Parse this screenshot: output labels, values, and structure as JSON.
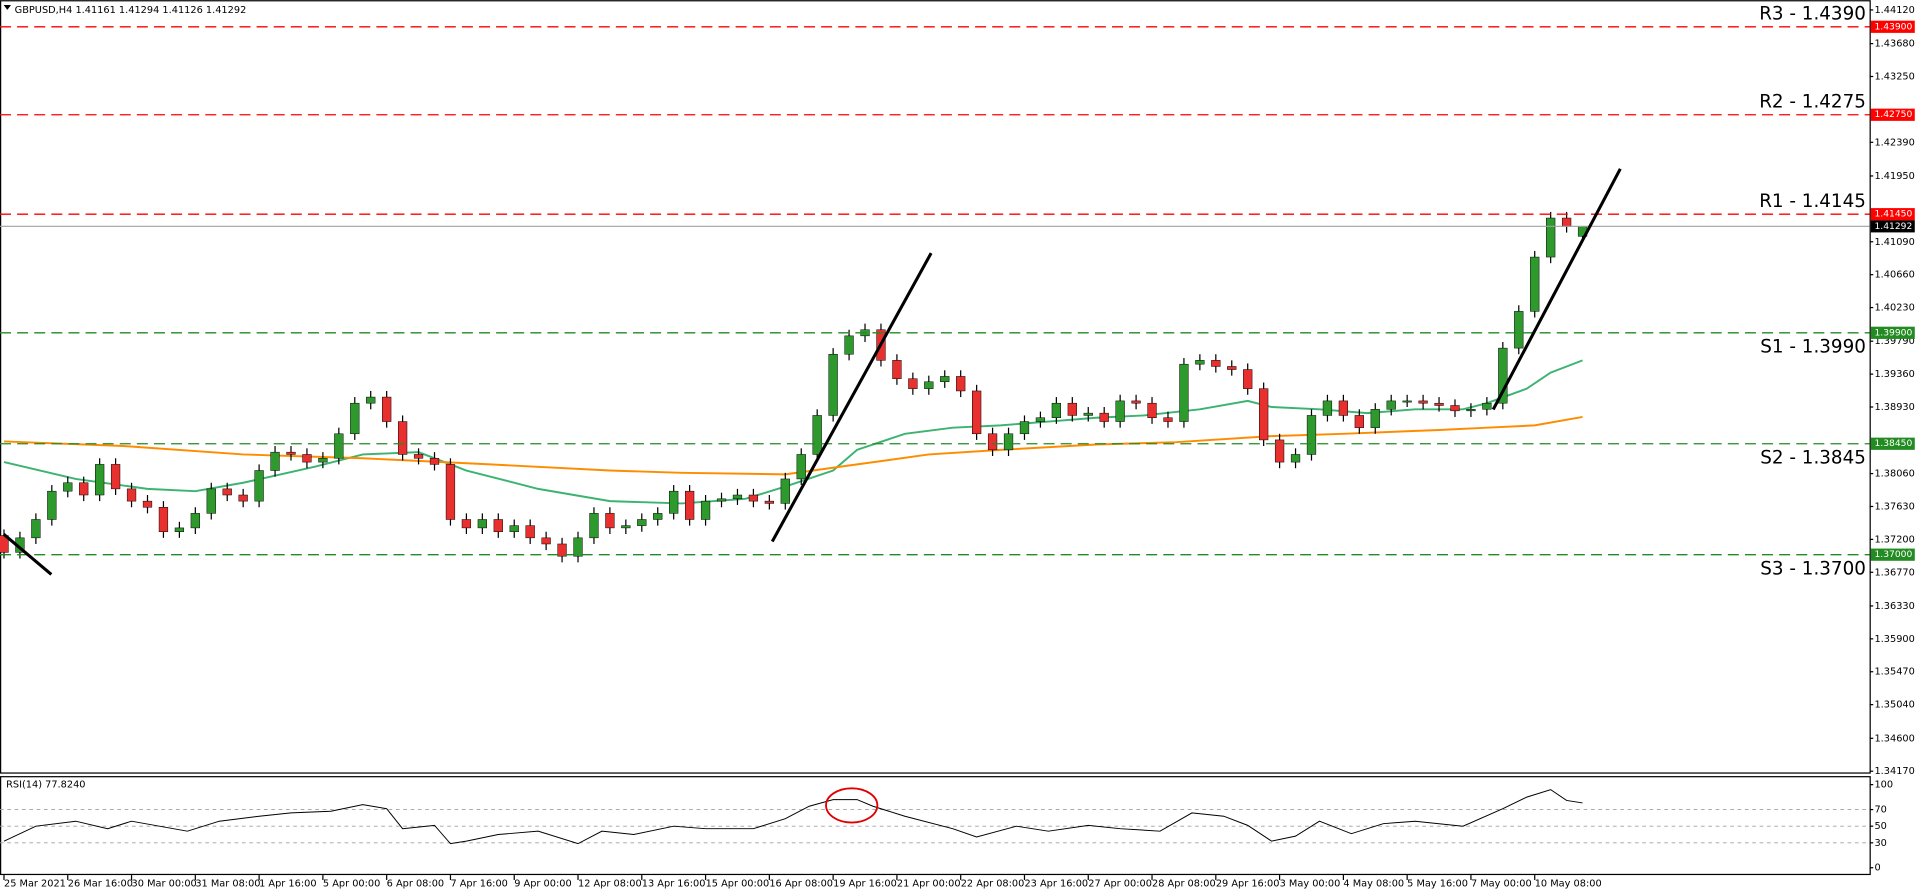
{
  "chart_data": [
    {
      "type": "candlestick",
      "title": "GBPUSD,H4  1.41161 1.41294 1.41126 1.41292",
      "x": [
        0,
        2,
        4,
        6,
        8,
        10,
        12,
        14,
        16,
        18,
        20,
        22,
        24,
        26,
        28,
        30,
        32,
        34,
        36,
        38,
        40,
        42,
        44,
        46,
        48,
        50,
        52,
        54,
        56,
        58,
        60,
        62,
        64,
        66,
        68,
        70,
        72,
        74,
        76,
        78,
        80,
        82,
        84,
        86,
        88,
        90,
        92,
        94,
        96,
        98,
        100,
        102,
        104,
        106,
        108,
        110,
        112,
        114,
        116,
        118,
        120,
        122,
        124,
        126,
        128,
        130,
        132,
        134,
        136,
        138,
        140,
        142,
        144,
        146,
        148,
        150,
        152,
        154,
        156,
        158,
        160,
        162,
        164,
        166,
        168,
        170,
        172,
        174,
        176,
        178,
        180,
        182,
        184,
        186,
        188,
        190,
        192,
        194,
        196,
        198
      ],
      "open": [
        1.3725,
        1.3703,
        1.3722,
        1.3746,
        1.3783,
        1.3794,
        1.3778,
        1.3818,
        1.3786,
        1.377,
        1.3762,
        1.373,
        1.3735,
        1.3754,
        1.3786,
        1.3778,
        1.377,
        1.381,
        1.3834,
        1.3831,
        1.3821,
        1.3826,
        1.3858,
        1.3898,
        1.3906,
        1.3874,
        1.3831,
        1.3826,
        1.3818,
        1.3746,
        1.3735,
        1.3746,
        1.373,
        1.3738,
        1.3722,
        1.3714,
        1.3698,
        1.3722,
        1.3754,
        1.3735,
        1.3738,
        1.3746,
        1.3754,
        1.3783,
        1.3746,
        1.377,
        1.3773,
        1.3778,
        1.377,
        1.3767,
        1.3799,
        1.3831,
        1.3882,
        1.3962,
        1.3986,
        1.3994,
        1.3954,
        1.393,
        1.3917,
        1.3926,
        1.3933,
        1.3914,
        1.3858,
        1.3837,
        1.3858,
        1.3874,
        1.3879,
        1.3898,
        1.3882,
        1.3885,
        1.3874,
        1.3901,
        1.3898,
        1.3879,
        1.3874,
        1.3949,
        1.3954,
        1.3946,
        1.3942,
        1.3917,
        1.385,
        1.3821,
        1.3831,
        1.3882,
        1.3901,
        1.3882,
        1.3866,
        1.389,
        1.3901,
        1.3901,
        1.3898,
        1.3895,
        1.3888,
        1.389,
        1.3898,
        1.397,
        1.4018,
        1.4089,
        1.414,
        1.41161
      ],
      "high": [
        1.3733,
        1.373,
        1.3754,
        1.3791,
        1.3802,
        1.3802,
        1.3826,
        1.3826,
        1.3794,
        1.3778,
        1.377,
        1.3743,
        1.3762,
        1.3794,
        1.3794,
        1.3786,
        1.3818,
        1.3842,
        1.3842,
        1.3839,
        1.3834,
        1.3866,
        1.3906,
        1.3914,
        1.3914,
        1.3882,
        1.3839,
        1.3834,
        1.3826,
        1.3754,
        1.3754,
        1.3754,
        1.3746,
        1.3746,
        1.373,
        1.3722,
        1.373,
        1.3762,
        1.3762,
        1.3746,
        1.3754,
        1.3762,
        1.3791,
        1.3791,
        1.3778,
        1.3781,
        1.3786,
        1.3786,
        1.3778,
        1.3807,
        1.3839,
        1.389,
        1.397,
        1.3994,
        1.4002,
        1.4002,
        1.3962,
        1.3938,
        1.3934,
        1.3941,
        1.3941,
        1.3922,
        1.3866,
        1.3866,
        1.3882,
        1.3887,
        1.3906,
        1.3906,
        1.3893,
        1.3893,
        1.3909,
        1.3909,
        1.3906,
        1.3887,
        1.3957,
        1.3962,
        1.3962,
        1.3954,
        1.395,
        1.3925,
        1.3858,
        1.3839,
        1.389,
        1.3909,
        1.3909,
        1.389,
        1.3898,
        1.3909,
        1.3909,
        1.3909,
        1.3906,
        1.3903,
        1.3898,
        1.3906,
        1.3978,
        1.4026,
        1.4097,
        1.4148,
        1.4148,
        1.41294
      ],
      "low": [
        1.3695,
        1.3695,
        1.3714,
        1.3738,
        1.3775,
        1.377,
        1.377,
        1.3778,
        1.3762,
        1.3754,
        1.3722,
        1.3722,
        1.3727,
        1.3746,
        1.377,
        1.3762,
        1.3762,
        1.3802,
        1.3823,
        1.3813,
        1.3813,
        1.3818,
        1.385,
        1.389,
        1.3866,
        1.3823,
        1.3818,
        1.381,
        1.3738,
        1.3727,
        1.3727,
        1.3722,
        1.3722,
        1.3714,
        1.3706,
        1.369,
        1.369,
        1.3714,
        1.3727,
        1.3727,
        1.373,
        1.3738,
        1.3746,
        1.3738,
        1.3738,
        1.3762,
        1.3765,
        1.3762,
        1.3759,
        1.3759,
        1.3791,
        1.3823,
        1.3874,
        1.3954,
        1.3978,
        1.3946,
        1.3922,
        1.3909,
        1.3909,
        1.3918,
        1.3906,
        1.385,
        1.3829,
        1.3829,
        1.385,
        1.3866,
        1.3871,
        1.3874,
        1.3874,
        1.3866,
        1.3866,
        1.389,
        1.3871,
        1.3866,
        1.3866,
        1.3941,
        1.3938,
        1.3934,
        1.3909,
        1.3842,
        1.3813,
        1.3813,
        1.3823,
        1.3874,
        1.3874,
        1.3858,
        1.3858,
        1.3882,
        1.3893,
        1.389,
        1.3887,
        1.388,
        1.388,
        1.3882,
        1.389,
        1.3962,
        1.401,
        1.4081,
        1.4121,
        1.41126
      ],
      "close": [
        1.3703,
        1.3722,
        1.3746,
        1.3783,
        1.3794,
        1.3778,
        1.3818,
        1.3786,
        1.377,
        1.3762,
        1.373,
        1.3735,
        1.3754,
        1.3786,
        1.3778,
        1.377,
        1.381,
        1.3834,
        1.3831,
        1.3821,
        1.3826,
        1.3858,
        1.3898,
        1.3906,
        1.3874,
        1.3831,
        1.3826,
        1.3818,
        1.3746,
        1.3735,
        1.3746,
        1.373,
        1.3738,
        1.3722,
        1.3714,
        1.3698,
        1.3722,
        1.3754,
        1.3735,
        1.3738,
        1.3746,
        1.3754,
        1.3783,
        1.3746,
        1.377,
        1.3773,
        1.3778,
        1.377,
        1.3767,
        1.3799,
        1.3831,
        1.3882,
        1.3962,
        1.3986,
        1.3994,
        1.3954,
        1.393,
        1.3917,
        1.3926,
        1.3933,
        1.3914,
        1.3858,
        1.3837,
        1.3858,
        1.3874,
        1.3879,
        1.3898,
        1.3882,
        1.3885,
        1.3874,
        1.3901,
        1.3898,
        1.3879,
        1.3874,
        1.3949,
        1.3954,
        1.3946,
        1.3942,
        1.3917,
        1.385,
        1.3821,
        1.3831,
        1.3882,
        1.3901,
        1.3882,
        1.3866,
        1.389,
        1.3901,
        1.3901,
        1.3898,
        1.3895,
        1.3888,
        1.389,
        1.3898,
        1.397,
        1.4018,
        1.4089,
        1.414,
        1.4129,
        1.41292
      ],
      "up_color": "#2e9a2e",
      "down_color": "#e8302f",
      "wick_color": "#000000",
      "series": [
        {
          "color": "#3cb371",
          "x": [
            0,
            9,
            18,
            24,
            30,
            39,
            45,
            52,
            58,
            67,
            76,
            85,
            93,
            98,
            104,
            107,
            113,
            119,
            125,
            131,
            137,
            143,
            150,
            156,
            159,
            165,
            171,
            177,
            183,
            186,
            191,
            194,
            198
          ],
          "values": [
            1.3821,
            1.3799,
            1.3786,
            1.3783,
            1.3794,
            1.3815,
            1.3831,
            1.3834,
            1.381,
            1.3786,
            1.377,
            1.3767,
            1.3773,
            1.3789,
            1.381,
            1.3837,
            1.3858,
            1.3866,
            1.3869,
            1.3874,
            1.3879,
            1.3882,
            1.389,
            1.3901,
            1.3893,
            1.389,
            1.3885,
            1.389,
            1.389,
            1.3898,
            1.3917,
            1.3938,
            1.3954
          ]
        },
        {
          "color": "#ff8c00",
          "x": [
            0,
            15,
            30,
            45,
            61,
            76,
            85,
            98,
            107,
            116,
            125,
            137,
            147,
            159,
            168,
            180,
            186,
            192,
            198
          ],
          "values": [
            1.3848,
            1.3842,
            1.3831,
            1.3826,
            1.3818,
            1.381,
            1.3807,
            1.3805,
            1.3818,
            1.3831,
            1.3837,
            1.3844,
            1.3847,
            1.3855,
            1.3858,
            1.3863,
            1.3866,
            1.3869,
            1.388
          ]
        }
      ],
      "levels": [
        {
          "label": "R3 - 1.4390",
          "value": 1.439,
          "value_label": "1.43900",
          "color": "#ff0000"
        },
        {
          "label": "R2 - 1.4275",
          "value": 1.4275,
          "value_label": "1.42750",
          "color": "#ff0000"
        },
        {
          "label": "R1 - 1.4145",
          "value": 1.4145,
          "value_label": "1.41450",
          "color": "#ff0000"
        },
        {
          "label": "S1 - 1.3990",
          "value": 1.399,
          "value_label": "1.39900",
          "color": "#228b22"
        },
        {
          "label": "S2 - 1.3845",
          "value": 1.3845,
          "value_label": "1.38450",
          "color": "#228b22"
        },
        {
          "label": "S3 - 1.3700",
          "value": 1.37,
          "value_label": "1.37000",
          "color": "#228b22"
        }
      ],
      "last_price": {
        "value": 1.41292,
        "label": "1.41292"
      },
      "xlim": [
        -0.5,
        234
      ],
      "ylim": [
        1.3417,
        1.4412
      ],
      "yticks": [
        {
          "value": 1.4412,
          "label": "1.44120"
        },
        {
          "value": 1.4368,
          "label": "1.43680"
        },
        {
          "value": 1.4325,
          "label": "1.43250"
        },
        {
          "value": 1.4239,
          "label": "1.42390"
        },
        {
          "value": 1.4195,
          "label": "1.41950"
        },
        {
          "value": 1.4109,
          "label": "1.41090"
        },
        {
          "value": 1.4066,
          "label": "1.40660"
        },
        {
          "value": 1.4023,
          "label": "1.40230"
        },
        {
          "value": 1.3979,
          "label": "1.39790"
        },
        {
          "value": 1.3936,
          "label": "1.39360"
        },
        {
          "value": 1.3893,
          "label": "1.38930"
        },
        {
          "value": 1.3806,
          "label": "1.38060"
        },
        {
          "value": 1.3763,
          "label": "1.37630"
        },
        {
          "value": 1.372,
          "label": "1.37200"
        },
        {
          "value": 1.3677,
          "label": "1.36770"
        },
        {
          "value": 1.3633,
          "label": "1.36330"
        },
        {
          "value": 1.359,
          "label": "1.35900"
        },
        {
          "value": 1.3547,
          "label": "1.35470"
        },
        {
          "value": 1.3504,
          "label": "1.35040"
        },
        {
          "value": 1.346,
          "label": "1.34600"
        },
        {
          "value": 1.3417,
          "label": "1.34170"
        }
      ]
    },
    {
      "type": "line",
      "title": "RSI(14) 77.8240",
      "color": "#000000",
      "x": [
        0,
        4,
        9,
        13,
        16,
        23,
        27,
        32,
        36,
        41,
        45,
        48,
        50,
        54,
        56,
        58,
        62,
        67,
        72,
        75,
        79,
        84,
        88,
        94,
        98,
        101,
        104,
        107,
        109,
        113,
        119,
        122,
        127,
        131,
        136,
        140,
        145,
        149,
        153,
        156,
        159,
        162,
        165,
        169,
        173,
        177,
        183,
        188,
        191,
        194,
        196,
        198
      ],
      "values": [
        32,
        50,
        56,
        47,
        56,
        44,
        56,
        62,
        66,
        68,
        76,
        71,
        47,
        51,
        29,
        32,
        40,
        44,
        29,
        44,
        40,
        50,
        47,
        47,
        59,
        74,
        82,
        82,
        74,
        62,
        47,
        37,
        50,
        44,
        51,
        47,
        44,
        66,
        62,
        51,
        32,
        38,
        56,
        41,
        53,
        56,
        50,
        71,
        85,
        94,
        81,
        78
      ],
      "levels": [
        70,
        50,
        30
      ],
      "xlim": [
        -0.5,
        234
      ],
      "ylim": [
        0,
        100
      ],
      "yticks": [
        100,
        70,
        50,
        30,
        0
      ],
      "xticks": [
        {
          "value": 0,
          "label": "25 Mar 2021"
        },
        {
          "value": 8,
          "label": "26 Mar 16:00"
        },
        {
          "value": 16,
          "label": "30 Mar 00:00"
        },
        {
          "value": 24,
          "label": "31 Mar 08:00"
        },
        {
          "value": 32,
          "label": "1 Apr 16:00"
        },
        {
          "value": 40,
          "label": "5 Apr 00:00"
        },
        {
          "value": 48,
          "label": "6 Apr 08:00"
        },
        {
          "value": 56,
          "label": "7 Apr 16:00"
        },
        {
          "value": 64,
          "label": "9 Apr 00:00"
        },
        {
          "value": 72,
          "label": "12 Apr 08:00"
        },
        {
          "value": 80,
          "label": "13 Apr 16:00"
        },
        {
          "value": 88,
          "label": "15 Apr 00:00"
        },
        {
          "value": 96,
          "label": "16 Apr 08:00"
        },
        {
          "value": 104,
          "label": "19 Apr 16:00"
        },
        {
          "value": 112,
          "label": "21 Apr 00:00"
        },
        {
          "value": 120,
          "label": "22 Apr 08:00"
        },
        {
          "value": 128,
          "label": "23 Apr 16:00"
        },
        {
          "value": 136,
          "label": "27 Apr 00:00"
        },
        {
          "value": 144,
          "label": "28 Apr 08:00"
        },
        {
          "value": 152,
          "label": "29 Apr 16:00"
        },
        {
          "value": 160,
          "label": "3 May 00:00"
        },
        {
          "value": 168,
          "label": "4 May 08:00"
        },
        {
          "value": 176,
          "label": "5 May 16:00"
        },
        {
          "value": 184,
          "label": "7 May 00:00"
        },
        {
          "value": 192,
          "label": "10 May 08:00"
        }
      ]
    }
  ]
}
